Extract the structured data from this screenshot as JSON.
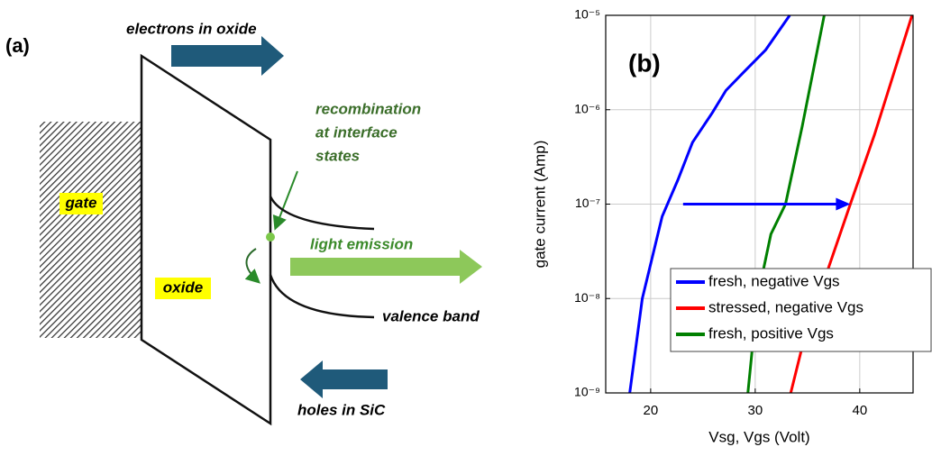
{
  "diagram": {
    "panel_label": "(a)",
    "electrons": "electrons in oxide",
    "recombination": [
      "recombination",
      "at interface",
      "states"
    ],
    "gate": "gate",
    "oxide": "oxide",
    "light": "light emission",
    "valence": "valence band",
    "holes": "holes in SiC"
  },
  "chart_data": {
    "type": "line",
    "panel_label": "(b)",
    "x_label": "Vsg, Vgs (Volt)",
    "y_label": "gate current (Amp)",
    "log_y": true,
    "grid": true,
    "legend": "lower right",
    "xlim": [
      15.7,
      45.1
    ],
    "ylim": [
      1e-09,
      1e-05
    ],
    "xticks": [
      20,
      30,
      40
    ],
    "yticks": [
      {
        "value": 1e-09,
        "label": "10⁻⁹"
      },
      {
        "value": 1e-08,
        "label": "10⁻⁸"
      },
      {
        "value": 1e-07,
        "label": "10⁻⁷"
      },
      {
        "value": 1e-06,
        "label": "10⁻⁶"
      },
      {
        "value": 1e-05,
        "label": "10⁻⁵"
      }
    ],
    "series": [
      {
        "name": "fresh, negative Vgs",
        "color": "#0000ff",
        "x": [
          18.0,
          19.2,
          21.1,
          22.6,
          24.0,
          25.9,
          27.2,
          28.9,
          31.0,
          33.3
        ],
        "values": [
          1e-09,
          1e-08,
          7.4e-08,
          1.8e-07,
          4.5e-07,
          9.3e-07,
          1.6e-06,
          2.5e-06,
          4.3e-06,
          1e-05
        ]
      },
      {
        "name": "stressed, negative Vgs",
        "color": "#ff0000",
        "x": [
          33.4,
          34.7,
          39.1,
          41.4,
          45.0
        ],
        "values": [
          1e-09,
          3.8e-09,
          1e-07,
          5.4e-07,
          1e-05
        ]
      },
      {
        "name": "fresh, positive Vgs",
        "color": "#008000",
        "x": [
          29.3,
          30.2,
          31.5,
          32.9,
          34.5,
          36.6
        ],
        "values": [
          1e-09,
          1e-08,
          4.8e-08,
          1e-07,
          6.7e-07,
          1e-05
        ]
      }
    ],
    "arrow": {
      "x": [
        23.1,
        39.1
      ],
      "y": 1e-07,
      "color": "#0000ff"
    }
  }
}
